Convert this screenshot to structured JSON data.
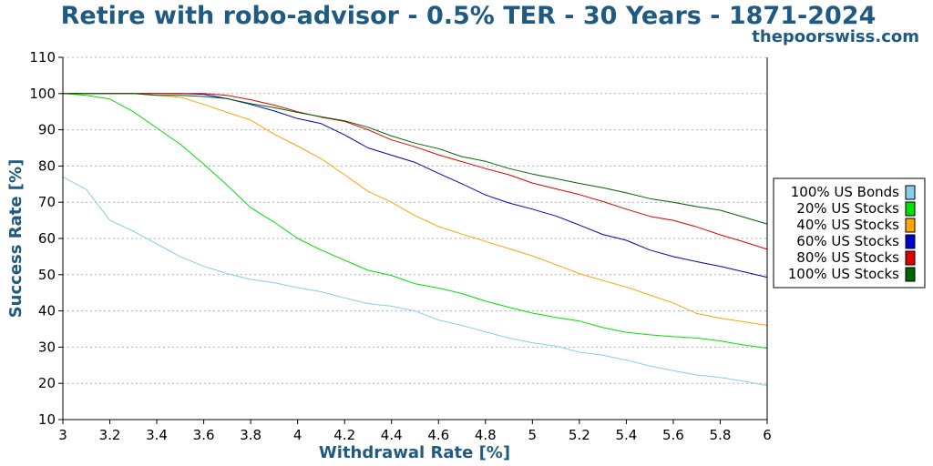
{
  "chart_data": {
    "type": "line",
    "title": "Retire with robo-advisor - 0.5% TER - 30 Years - 1871-2024",
    "subtitle": "thepoorswiss.com",
    "xlabel": "Withdrawal Rate [%]",
    "ylabel": "Success Rate [%]",
    "xlim": [
      3,
      6
    ],
    "ylim": [
      10,
      110
    ],
    "x_ticks": [
      "3",
      "3.2",
      "3.4",
      "3.6",
      "3.8",
      "4",
      "4.2",
      "4.4",
      "4.6",
      "4.8",
      "5",
      "5.2",
      "5.4",
      "5.6",
      "5.8",
      "6"
    ],
    "y_ticks": [
      "10",
      "20",
      "30",
      "40",
      "50",
      "60",
      "70",
      "80",
      "90",
      "100",
      "110"
    ],
    "grid": "horizontal dotted",
    "legend_position": "right",
    "x": [
      3.0,
      3.1,
      3.2,
      3.3,
      3.4,
      3.5,
      3.6,
      3.7,
      3.8,
      3.9,
      4.0,
      4.1,
      4.2,
      4.3,
      4.4,
      4.5,
      4.6,
      4.7,
      4.8,
      4.9,
      5.0,
      5.1,
      5.2,
      5.3,
      5.4,
      5.5,
      5.6,
      5.7,
      5.8,
      5.9,
      6.0
    ],
    "series": [
      {
        "name": "100% US Bonds",
        "color": "#87ceeb",
        "values": [
          77,
          73.5,
          65,
          62,
          58.5,
          55,
          52.3,
          50.3,
          48.7,
          47.8,
          46.4,
          45.3,
          43.6,
          42,
          41.3,
          40,
          37.5,
          36,
          34.2,
          32.5,
          31.2,
          30.3,
          28.6,
          27.8,
          26.4,
          24.8,
          23.5,
          22.3,
          21.6,
          20.6,
          19.4
        ]
      },
      {
        "name": "20% US Stocks",
        "color": "#00e000",
        "values": [
          100,
          99.5,
          98.5,
          95,
          90.5,
          86,
          80.5,
          74.7,
          68.5,
          64.5,
          60,
          56.8,
          54,
          51.2,
          49.8,
          47.5,
          46.3,
          44.8,
          42.7,
          41,
          39.4,
          38.2,
          37.2,
          35.4,
          34.1,
          33.4,
          32.9,
          32.5,
          31.7,
          30.6,
          29.7
        ]
      },
      {
        "name": "40% US Stocks",
        "color": "#ffa500",
        "values": [
          100,
          100,
          100,
          100,
          99.5,
          99,
          97,
          94.8,
          92.7,
          88.8,
          85.5,
          82,
          77.6,
          73,
          70,
          66.3,
          63.3,
          61.2,
          59.2,
          57.2,
          55.2,
          52.8,
          50.3,
          48.4,
          46.6,
          44.4,
          42.2,
          39.3,
          38,
          37,
          36
        ]
      },
      {
        "name": "60% US Stocks",
        "color": "#0000cc",
        "values": [
          100,
          100,
          100,
          100,
          100,
          100,
          99.8,
          98.6,
          97,
          95.2,
          93.1,
          91.7,
          88.6,
          85,
          83,
          81,
          78,
          75.1,
          72,
          69.8,
          68.1,
          66.2,
          63.7,
          61.1,
          59.5,
          56.8,
          55,
          53.6,
          52.3,
          50.8,
          49.3
        ]
      },
      {
        "name": "80% US Stocks",
        "color": "#e00000",
        "values": [
          100,
          100,
          100,
          100,
          100,
          100,
          100,
          99.5,
          98.3,
          96.8,
          95,
          93.5,
          92.3,
          90,
          87.2,
          85.3,
          83.1,
          81.2,
          79.3,
          77.6,
          75.3,
          73.7,
          72.1,
          70.2,
          68.1,
          66.1,
          65,
          63.2,
          61,
          59.1,
          57
        ]
      },
      {
        "name": "100% US Stocks",
        "color": "#006400",
        "values": [
          100,
          100,
          100,
          100,
          99.5,
          99.5,
          99.2,
          98.6,
          97.2,
          96.1,
          94.8,
          93.6,
          92.5,
          90.7,
          88.3,
          86.3,
          84.8,
          82.6,
          81.3,
          79.3,
          77.8,
          76.5,
          75.2,
          74,
          72.6,
          71,
          70,
          68.8,
          67.8,
          65.9,
          64
        ]
      }
    ]
  }
}
